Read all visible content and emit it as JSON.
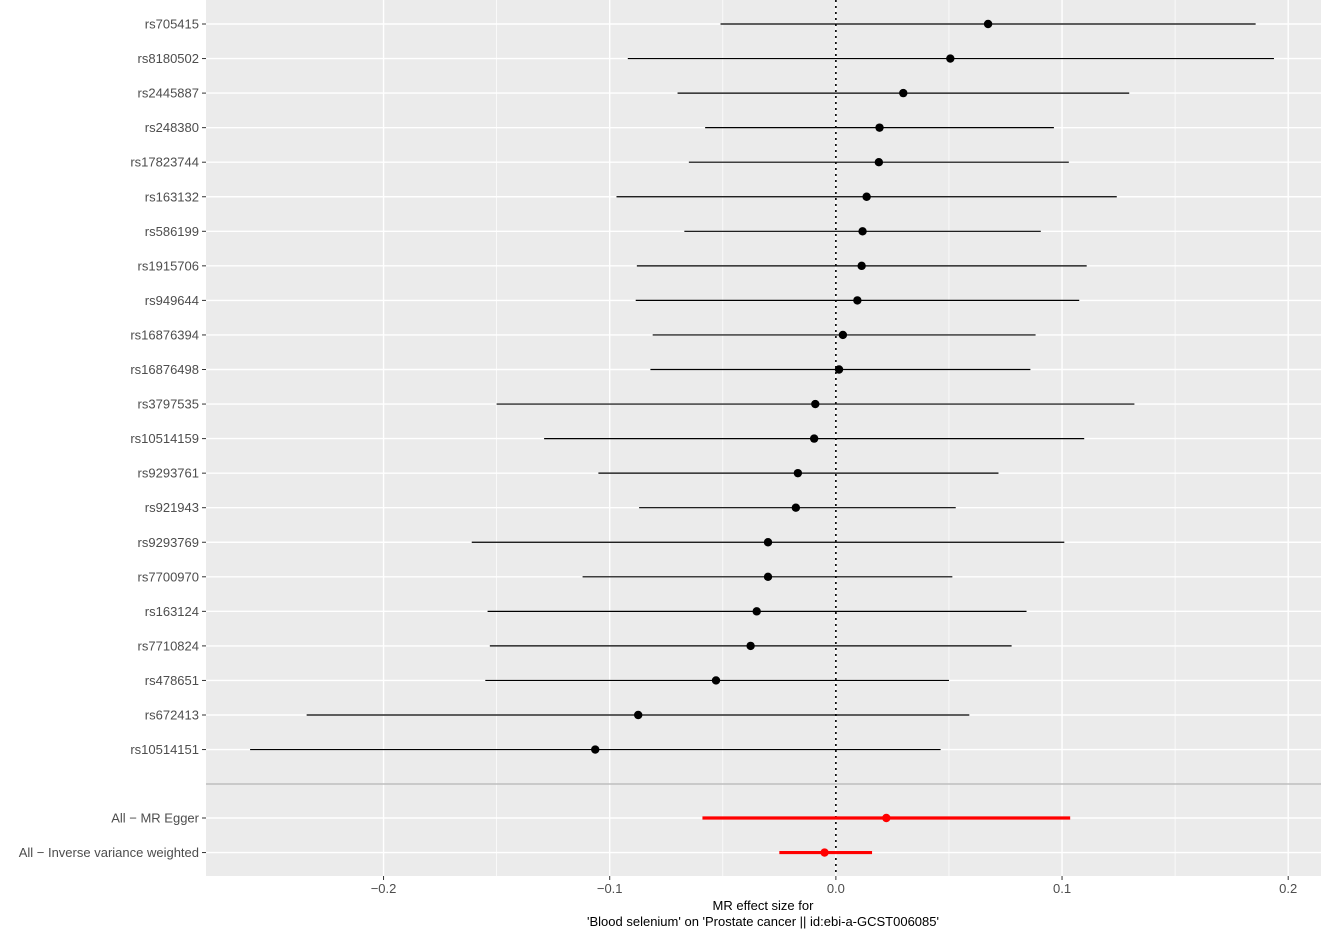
{
  "chart_data": {
    "type": "scatter",
    "subtype": "forest",
    "xlabel_lines": [
      "MR effect size for",
      "'Blood selenium' on 'Prostate cancer || id:ebi-a-GCST006085'"
    ],
    "ylabel": "",
    "xlim": [
      -0.2785,
      0.2145
    ],
    "x_ticks": [
      -0.2,
      -0.1,
      0.0,
      0.1,
      0.2
    ],
    "x_tick_labels": [
      "−0.2",
      "−0.1",
      "0.0",
      "0.1",
      "0.2"
    ],
    "grid": true,
    "reference_line": 0,
    "snps": [
      {
        "label": "rs705415",
        "est": 0.0673,
        "lo": -0.051,
        "hi": 0.1856
      },
      {
        "label": "rs8180502",
        "est": 0.0506,
        "lo": -0.092,
        "hi": 0.1937
      },
      {
        "label": "rs2445887",
        "est": 0.0298,
        "lo": -0.07,
        "hi": 0.1297
      },
      {
        "label": "rs248380",
        "est": 0.0193,
        "lo": -0.0578,
        "hi": 0.0964
      },
      {
        "label": "rs17823744",
        "est": 0.019,
        "lo": -0.065,
        "hi": 0.103
      },
      {
        "label": "rs163132",
        "est": 0.0136,
        "lo": -0.097,
        "hi": 0.1242
      },
      {
        "label": "rs586199",
        "est": 0.0118,
        "lo": -0.067,
        "hi": 0.0906
      },
      {
        "label": "rs1915706",
        "est": 0.0114,
        "lo": -0.088,
        "hi": 0.1109
      },
      {
        "label": "rs949644",
        "est": 0.0095,
        "lo": -0.0885,
        "hi": 0.1076
      },
      {
        "label": "rs16876394",
        "est": 0.0031,
        "lo": -0.081,
        "hi": 0.0883
      },
      {
        "label": "rs16876498",
        "est": 0.0014,
        "lo": -0.082,
        "hi": 0.086
      },
      {
        "label": "rs3797535",
        "est": -0.0091,
        "lo": -0.15,
        "hi": 0.132
      },
      {
        "label": "rs10514159",
        "est": -0.0096,
        "lo": -0.129,
        "hi": 0.1098
      },
      {
        "label": "rs9293761",
        "est": -0.0168,
        "lo": -0.105,
        "hi": 0.0719
      },
      {
        "label": "rs921943",
        "est": -0.0177,
        "lo": -0.087,
        "hi": 0.053
      },
      {
        "label": "rs9293769",
        "est": -0.03,
        "lo": -0.161,
        "hi": 0.101
      },
      {
        "label": "rs7700970",
        "est": -0.03,
        "lo": -0.112,
        "hi": 0.0515
      },
      {
        "label": "rs163124",
        "est": -0.035,
        "lo": -0.154,
        "hi": 0.0843
      },
      {
        "label": "rs7710824",
        "est": -0.0377,
        "lo": -0.153,
        "hi": 0.0777
      },
      {
        "label": "rs478651",
        "est": -0.053,
        "lo": -0.155,
        "hi": 0.05
      },
      {
        "label": "rs672413",
        "est": -0.0874,
        "lo": -0.234,
        "hi": 0.059
      },
      {
        "label": "rs10514151",
        "est": -0.1064,
        "lo": -0.259,
        "hi": 0.0463
      }
    ],
    "summary": [
      {
        "label": "All − MR Egger",
        "est": 0.0223,
        "lo": -0.059,
        "hi": 0.1036
      },
      {
        "label": "All − Inverse variance weighted",
        "est": -0.005,
        "lo": -0.025,
        "hi": 0.016
      }
    ],
    "colors": {
      "panel": "#EBEBEB",
      "grid": "#FFFFFF",
      "snp": "#000000",
      "summary": "#FF0000",
      "divider": "#BEBEBE",
      "axis_text": "#4D4D4D"
    }
  }
}
